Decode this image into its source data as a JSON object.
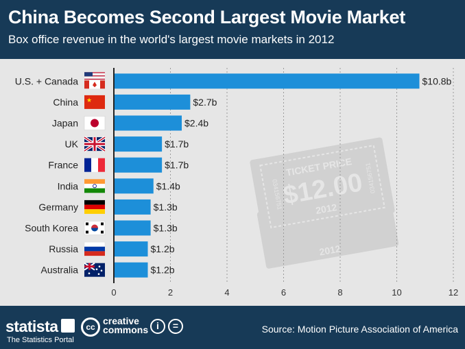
{
  "header": {
    "title": "China Becomes Second Largest Movie Market",
    "subtitle": "Box office revenue in the world's largest movie markets in 2012"
  },
  "chart_data": {
    "type": "bar",
    "orientation": "horizontal",
    "title": "China Becomes Second Largest Movie Market",
    "subtitle": "Box office revenue in the world's largest movie markets in 2012",
    "xlabel": "",
    "ylabel": "",
    "xlim": [
      0,
      12
    ],
    "xticks": [
      0,
      2,
      4,
      6,
      8,
      10,
      12
    ],
    "grid": true,
    "categories": [
      "U.S. + Canada",
      "China",
      "Japan",
      "UK",
      "France",
      "India",
      "Germany",
      "South Korea",
      "Russia",
      "Australia"
    ],
    "values": [
      10.8,
      2.7,
      2.4,
      1.7,
      1.7,
      1.4,
      1.3,
      1.3,
      1.2,
      1.2
    ],
    "value_labels": [
      "$10.8b",
      "$2.7b",
      "$2.4b",
      "$1.7b",
      "$1.7b",
      "$1.4b",
      "$1.3b",
      "$1.3b",
      "$1.2b",
      "$1.2b"
    ],
    "flags": [
      "us-ca",
      "cn",
      "jp",
      "gb",
      "fr",
      "in",
      "de",
      "kr",
      "ru",
      "au"
    ],
    "bar_color": "#1d8fd9"
  },
  "ticket": {
    "title": "TICKET PRICE",
    "price": "$12.00",
    "year": "2012",
    "serial": "034156751"
  },
  "footer": {
    "brand": "statista",
    "tagline": "The Statistics Portal",
    "license_line1": "creative",
    "license_line2": "commons",
    "source": "Source: Motion Picture Association of America"
  },
  "colors": {
    "header_bg": "#173a57",
    "plot_bg": "#e6e6e6",
    "bar": "#1d8fd9"
  }
}
